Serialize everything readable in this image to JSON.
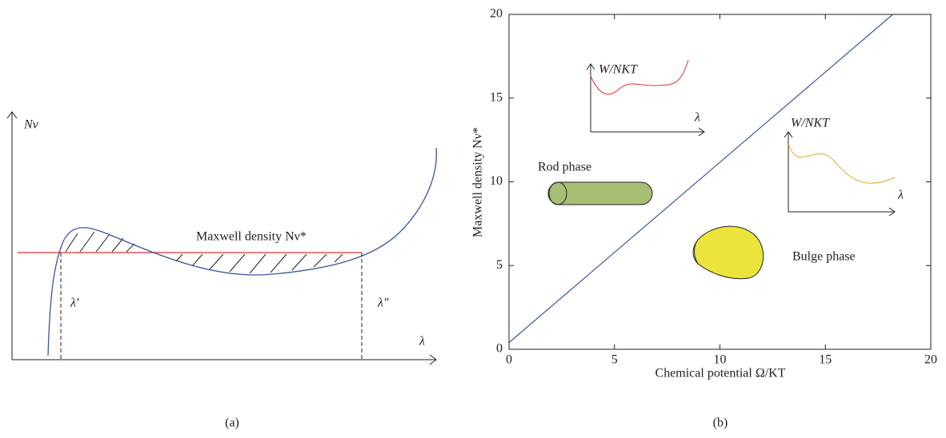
{
  "diagram": {
    "y_label": "Nν",
    "x_label": "λ",
    "annotation": "Maxwell density Nν*",
    "left_label": "λ′",
    "right_label": "λ″",
    "caption": "(a)"
  },
  "chart_data": {
    "type": "line",
    "x": [
      0,
      18.2
    ],
    "series": [
      {
        "values": [
          0.4,
          20
        ],
        "color": "#3a55a0"
      }
    ],
    "xlim": [
      0,
      20
    ],
    "ylim": [
      0,
      20
    ],
    "xticks": [
      0,
      5,
      10,
      15,
      20
    ],
    "yticks": [
      0,
      5,
      10,
      15,
      20
    ],
    "x_label": "Chemical potential Ω/KT",
    "y_label": "Maxwell density Nν*",
    "annotations": [
      "W/NKT",
      "λ",
      "Rod phase",
      "W/NKT",
      "λ",
      "Bulge phase"
    ],
    "caption": "(b)"
  }
}
